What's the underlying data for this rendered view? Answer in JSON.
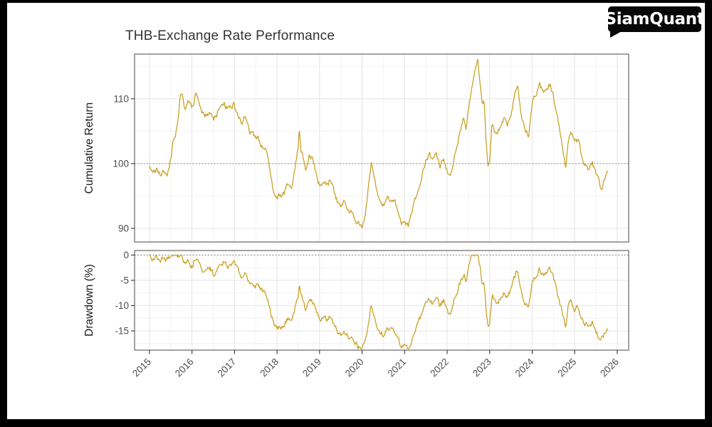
{
  "window": {
    "background": "#ffffff",
    "frame_color": "#000000"
  },
  "logo": {
    "text": "SiamQuant",
    "bg_color": "#070707",
    "text_color": "#ffffff"
  },
  "chart_data": {
    "type": "line",
    "title": "THB-Exchange Rate Performance",
    "line_color": "#C9A227",
    "grid": "on",
    "legend": "none",
    "x_range_years": [
      2014.65,
      2026.27
    ],
    "x_ticks": [
      2015,
      2016,
      2017,
      2018,
      2019,
      2020,
      2021,
      2022,
      2023,
      2024,
      2025,
      2026
    ],
    "panels": [
      {
        "name": "cumulative-return",
        "ylabel": "Cumulative Return",
        "y_ticks": [
          110,
          100,
          90
        ],
        "y_minor_ticks": [
          115,
          105,
          95
        ],
        "ref_line": 100,
        "ylim": [
          87.9,
          116.9
        ]
      },
      {
        "name": "drawdown",
        "ylabel": "Drawdown (%)",
        "y_ticks": [
          0,
          -5,
          -10,
          -15
        ],
        "y_minor_ticks": [
          -2.5,
          -7.5,
          -12.5,
          -17.5
        ],
        "ref_line": 0,
        "ylim": [
          -18.8,
          0.9
        ]
      }
    ],
    "x": [
      2015.0,
      2015.083,
      2015.167,
      2015.25,
      2015.333,
      2015.417,
      2015.5,
      2015.55,
      2015.6,
      2015.667,
      2015.72,
      2015.75,
      2015.833,
      2015.917,
      2016.0,
      2016.083,
      2016.167,
      2016.25,
      2016.333,
      2016.417,
      2016.5,
      2016.583,
      2016.667,
      2016.75,
      2016.833,
      2016.917,
      2017.0,
      2017.083,
      2017.167,
      2017.25,
      2017.333,
      2017.417,
      2017.5,
      2017.583,
      2017.667,
      2017.75,
      2017.833,
      2017.917,
      2018.0,
      2018.083,
      2018.167,
      2018.25,
      2018.333,
      2018.417,
      2018.5,
      2018.52,
      2018.56,
      2018.62,
      2018.667,
      2018.75,
      2018.833,
      2018.917,
      2019.0,
      2019.083,
      2019.167,
      2019.25,
      2019.333,
      2019.417,
      2019.5,
      2019.583,
      2019.667,
      2019.75,
      2019.833,
      2019.917,
      2020.0,
      2020.083,
      2020.167,
      2020.21,
      2020.25,
      2020.333,
      2020.417,
      2020.5,
      2020.583,
      2020.667,
      2020.75,
      2020.833,
      2020.917,
      2021.0,
      2021.083,
      2021.167,
      2021.25,
      2021.333,
      2021.417,
      2021.5,
      2021.583,
      2021.667,
      2021.75,
      2021.833,
      2021.917,
      2022.0,
      2022.083,
      2022.167,
      2022.25,
      2022.333,
      2022.39,
      2022.45,
      2022.5,
      2022.583,
      2022.667,
      2022.72,
      2022.78,
      2022.833,
      2022.87,
      2022.917,
      2022.97,
      2023.0,
      2023.06,
      2023.083,
      2023.167,
      2023.25,
      2023.333,
      2023.417,
      2023.5,
      2023.583,
      2023.65,
      2023.75,
      2023.833,
      2023.917,
      2024.0,
      2024.083,
      2024.167,
      2024.25,
      2024.333,
      2024.417,
      2024.5,
      2024.583,
      2024.667,
      2024.75,
      2024.79,
      2024.833,
      2024.917,
      2025.0,
      2025.083,
      2025.167,
      2025.25,
      2025.333,
      2025.417,
      2025.5,
      2025.583,
      2025.63,
      2025.667,
      2025.72,
      2025.78
    ],
    "series": [
      {
        "name": "Cumulative Return",
        "values": [
          99.3,
          98.4,
          99.1,
          98.2,
          98.9,
          98.5,
          100.8,
          103.6,
          103.9,
          106.5,
          110.4,
          110.9,
          108.8,
          110.1,
          108.4,
          110.6,
          109.3,
          107.8,
          107.3,
          108.0,
          106.7,
          107.6,
          108.9,
          109.4,
          108.3,
          108.8,
          109.0,
          107.3,
          106.4,
          107.1,
          105.3,
          104.4,
          104.1,
          103.6,
          102.8,
          101.8,
          99.2,
          95.9,
          94.9,
          95.1,
          95.4,
          96.9,
          96.0,
          99.0,
          102.3,
          105.3,
          102.0,
          100.8,
          99.0,
          101.2,
          100.9,
          98.4,
          96.6,
          97.3,
          96.6,
          97.4,
          95.7,
          94.2,
          93.5,
          93.9,
          93.1,
          92.5,
          91.9,
          90.8,
          90.4,
          92.6,
          97.0,
          100.1,
          98.9,
          96.3,
          94.1,
          93.4,
          94.7,
          94.2,
          94.6,
          93.1,
          91.1,
          90.7,
          90.3,
          92.1,
          94.4,
          96.1,
          98.6,
          100.4,
          101.3,
          100.1,
          101.4,
          99.7,
          100.9,
          98.8,
          97.6,
          100.9,
          103.3,
          105.6,
          106.9,
          105.2,
          108.0,
          111.5,
          114.8,
          115.7,
          112.5,
          108.6,
          110.2,
          103.0,
          99.6,
          100.2,
          106.5,
          105.8,
          104.3,
          105.9,
          106.9,
          106.2,
          107.8,
          110.5,
          112.1,
          107.0,
          105.2,
          104.3,
          108.9,
          110.8,
          112.4,
          110.9,
          111.6,
          112.3,
          110.2,
          107.6,
          104.4,
          101.0,
          99.1,
          103.3,
          105.4,
          103.3,
          103.7,
          101.2,
          99.7,
          99.4,
          100.1,
          98.4,
          96.8,
          96.2,
          97.1,
          98.0,
          99.2
        ]
      },
      {
        "name": "Drawdown (%)",
        "values": [
          0.0,
          -0.9,
          -0.2,
          -1.1,
          -0.4,
          -0.8,
          0.0,
          0.0,
          0.0,
          0.0,
          0.0,
          0.0,
          -1.9,
          -0.7,
          -2.3,
          -0.3,
          -1.4,
          -2.8,
          -3.2,
          -2.6,
          -3.8,
          -3.0,
          -1.8,
          -1.4,
          -2.3,
          -1.9,
          -1.7,
          -3.2,
          -4.1,
          -3.4,
          -5.0,
          -5.9,
          -6.1,
          -6.6,
          -7.3,
          -8.2,
          -10.6,
          -13.5,
          -14.4,
          -14.2,
          -14.0,
          -12.6,
          -13.4,
          -10.7,
          -7.8,
          -5.0,
          -8.0,
          -9.1,
          -10.7,
          -8.7,
          -9.0,
          -11.3,
          -12.9,
          -12.3,
          -12.9,
          -12.2,
          -13.7,
          -15.1,
          -15.7,
          -15.3,
          -16.1,
          -16.6,
          -17.1,
          -18.1,
          -18.5,
          -16.5,
          -12.5,
          -9.7,
          -10.8,
          -13.2,
          -15.1,
          -15.8,
          -14.6,
          -15.1,
          -14.7,
          -16.1,
          -17.9,
          -18.2,
          -18.6,
          -17.0,
          -14.9,
          -13.3,
          -11.1,
          -9.5,
          -8.7,
          -9.7,
          -8.6,
          -10.1,
          -9.0,
          -10.9,
          -12.0,
          -9.0,
          -6.9,
          -4.8,
          -3.6,
          -5.1,
          -2.6,
          0.0,
          0.0,
          0.0,
          -2.8,
          -6.1,
          -4.8,
          -11.0,
          -13.9,
          -13.4,
          -8.0,
          -8.6,
          -9.9,
          -8.5,
          -7.6,
          -8.2,
          -6.8,
          -4.5,
          -3.1,
          -7.5,
          -9.1,
          -9.9,
          -5.9,
          -4.2,
          -2.9,
          -4.1,
          -3.5,
          -2.9,
          -4.8,
          -7.0,
          -9.8,
          -12.7,
          -14.3,
          -10.7,
          -8.9,
          -10.7,
          -10.4,
          -12.5,
          -13.8,
          -14.1,
          -13.5,
          -15.0,
          -16.3,
          -16.9,
          -16.1,
          -15.3,
          -14.3
        ]
      }
    ]
  }
}
